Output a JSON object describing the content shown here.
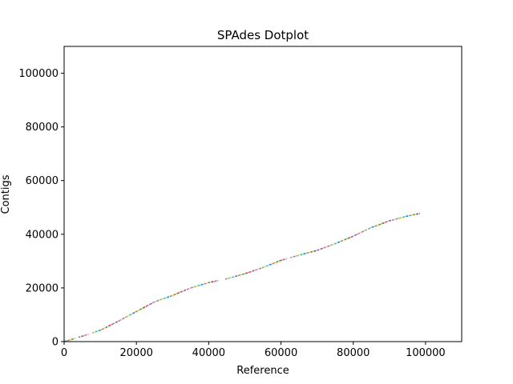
{
  "chart_data": {
    "type": "scatter",
    "title": "SPAdes Dotplot",
    "xlabel": "Reference",
    "ylabel": "Contigs",
    "xlim": [
      0,
      110000
    ],
    "ylim": [
      0,
      110000
    ],
    "xticks": [
      0,
      20000,
      40000,
      60000,
      80000,
      100000
    ],
    "yticks": [
      0,
      20000,
      40000,
      60000,
      80000,
      100000
    ],
    "grid": false,
    "legend": "none",
    "colors": [
      "#1f77b4",
      "#ff7f0e",
      "#2ca02c",
      "#d62728",
      "#9467bd",
      "#8c564b",
      "#e377c2",
      "#7f7f7f",
      "#bcbd22",
      "#17becf"
    ],
    "trace": {
      "x": [
        0,
        5000,
        10000,
        15000,
        20000,
        25000,
        30000,
        35000,
        40000,
        45000,
        50000,
        55000,
        60000,
        65000,
        70000,
        75000,
        80000,
        85000,
        90000,
        95000,
        100000
      ],
      "y": [
        0,
        2000,
        4200,
        7600,
        11200,
        14800,
        17200,
        20000,
        22000,
        23400,
        25300,
        27600,
        30300,
        32200,
        34000,
        36500,
        39300,
        42500,
        45000,
        46800,
        48200
      ]
    },
    "segment_length": 900
  }
}
